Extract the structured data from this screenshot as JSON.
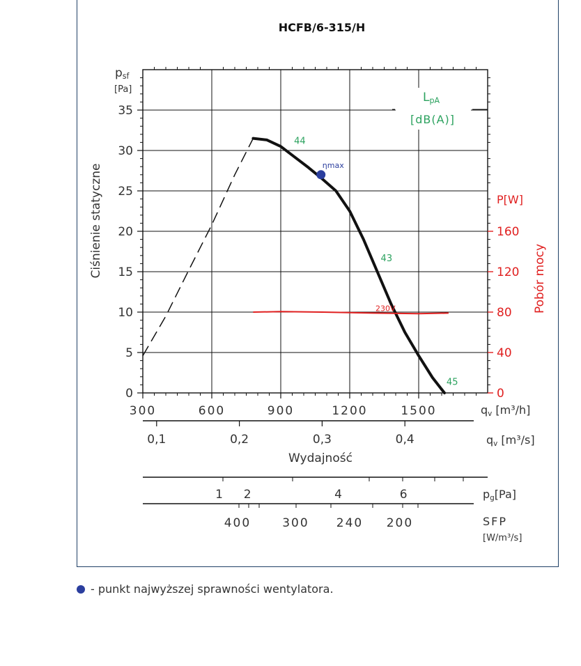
{
  "chart_data": {
    "type": "line",
    "title": "HCFB/6-315/H",
    "ylabel": "Ciśnienie statyczne",
    "yunit_symbol": "p",
    "yunit_sub": "sf",
    "yunit_unit": "[Pa]",
    "ylim": [
      0,
      40
    ],
    "yticks": [
      "0",
      "5",
      "10",
      "15",
      "20",
      "25",
      "30",
      "35"
    ],
    "xlabel": "Wydajność",
    "x_unit_m3h": "q",
    "x_unit_m3h_sub": "v",
    "x_unit_m3h_unit": "[m³/h]",
    "xlim": [
      300,
      1800
    ],
    "xticks": [
      "300",
      "600",
      "900",
      "1200",
      "1500"
    ],
    "x_m3s_ticks": [
      "0,1",
      "0,2",
      "0,3",
      "0,4"
    ],
    "x_m3s_values": [
      0.1,
      0.2,
      0.3,
      0.4
    ],
    "x_m3s_unit_sym": "q",
    "x_m3s_unit_sub": "v",
    "x_m3s_unit": "[m³/s]",
    "power_label": "Pobór mocy",
    "power_unit_sym": "P",
    "power_unit": "[W]",
    "power_ticks": [
      "0",
      "40",
      "80",
      "120",
      "160"
    ],
    "power_lim": [
      0,
      320
    ],
    "legend_lpa_sym": "L",
    "legend_lpa_sub": "pA",
    "legend_lpa_unit": "[dB(A)]",
    "series": [
      {
        "role": "pressure-dashed",
        "x": [
          300,
          400,
          500,
          600,
          700,
          780
        ],
        "y": [
          4.6,
          9.5,
          15.2,
          20.8,
          27.0,
          31.5
        ]
      },
      {
        "role": "pressure",
        "x": [
          780,
          840,
          900,
          960,
          1020,
          1080,
          1140,
          1200,
          1260,
          1320,
          1380,
          1440,
          1500,
          1560,
          1612
        ],
        "y": [
          31.5,
          31.3,
          30.5,
          29.2,
          27.9,
          26.5,
          25.0,
          22.5,
          19.0,
          15.0,
          11.0,
          7.5,
          4.6,
          1.9,
          0
        ]
      },
      {
        "name": "230V",
        "role": "power",
        "x": [
          780,
          900,
          1080,
          1300,
          1500,
          1630
        ],
        "y": [
          80,
          80.5,
          80,
          79,
          78.5,
          79
        ]
      }
    ],
    "annotations": [
      {
        "text": "44",
        "x": 958,
        "y": 30.8
      },
      {
        "text": "43",
        "x": 1335,
        "y": 16.3
      },
      {
        "text": "45",
        "x": 1621,
        "y": 1.0
      },
      {
        "text": "230V",
        "x": 1312,
        "y": 81.0
      }
    ],
    "eta_max": {
      "label_sym": "η",
      "label_sub": "max",
      "x": 1075,
      "y": 27.0
    },
    "pg_scale": {
      "unit_sym": "p",
      "unit_sub": "g",
      "unit": "[Pa]",
      "labels": [
        "1",
        "2",
        "4",
        "6"
      ],
      "label_x": [
        632,
        755,
        1150,
        1434
      ]
    },
    "sfp_scale": {
      "label": "SFP",
      "unit": "[W/m³/s]",
      "labels": [
        "400",
        "300",
        "240",
        "200"
      ],
      "label_x": [
        712,
        965,
        1200,
        1418
      ]
    }
  },
  "footnote": "- punkt najwyższej sprawności wentylatora.",
  "colors": {
    "pressure": "#111111",
    "power": "#e02020",
    "lpa": "#2ca25f",
    "eta": "#2b3e9e",
    "frame": "#1f3f66",
    "power_axis": "#e02020"
  }
}
